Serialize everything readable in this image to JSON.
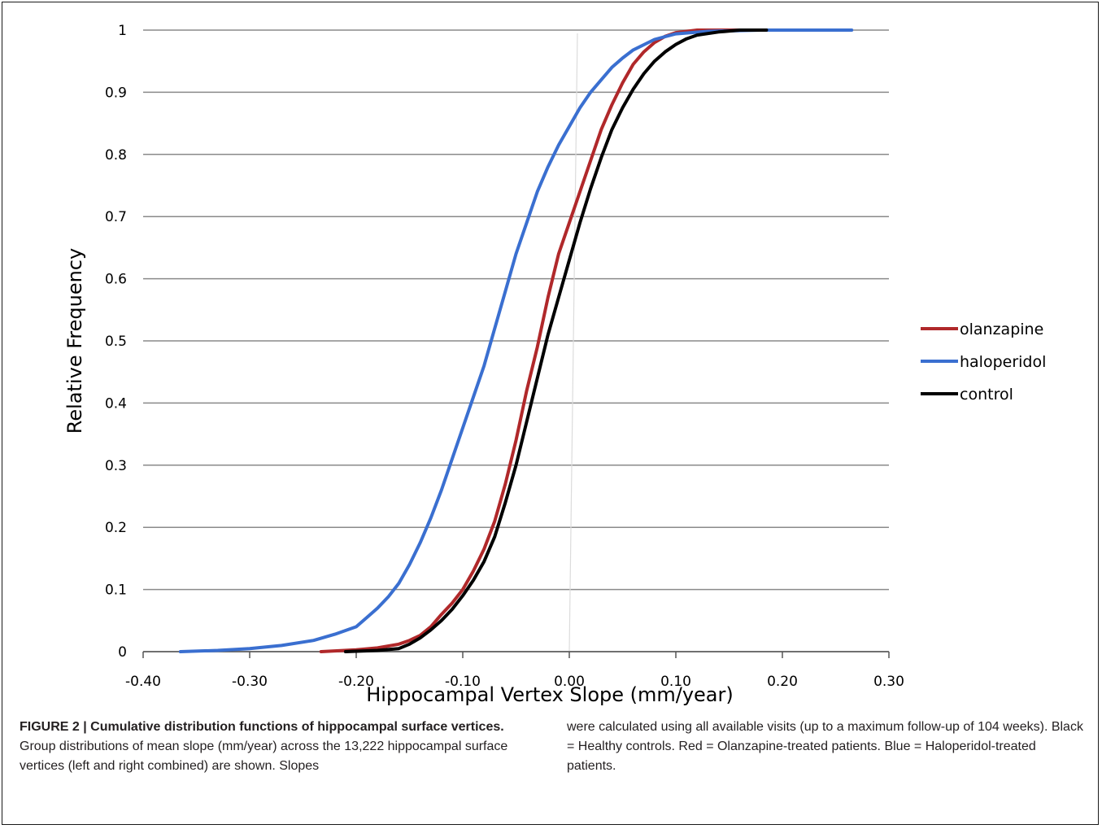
{
  "chart_data": {
    "type": "line",
    "title": "",
    "xlabel": "Hippocampal Vertex Slope (mm/year)",
    "ylabel": "Relative Frequency",
    "xlim": [
      -0.4,
      0.3
    ],
    "ylim": [
      0,
      1
    ],
    "x_ticks": [
      "-0.40",
      "-0.30",
      "-0.20",
      "-0.10",
      "0.00",
      "0.10",
      "0.20",
      "0.30"
    ],
    "y_ticks": [
      "0",
      "0.1",
      "0.2",
      "0.3",
      "0.4",
      "0.5",
      "0.6",
      "0.7",
      "0.8",
      "0.9",
      "1"
    ],
    "grid": "horizontal",
    "legend_position": "right",
    "series": [
      {
        "name": "olanzapine",
        "color": "#b0282a",
        "points": [
          [
            -0.233,
            0.0
          ],
          [
            -0.2,
            0.003
          ],
          [
            -0.18,
            0.006
          ],
          [
            -0.16,
            0.012
          ],
          [
            -0.15,
            0.018
          ],
          [
            -0.14,
            0.026
          ],
          [
            -0.13,
            0.04
          ],
          [
            -0.12,
            0.06
          ],
          [
            -0.11,
            0.078
          ],
          [
            -0.1,
            0.1
          ],
          [
            -0.09,
            0.13
          ],
          [
            -0.08,
            0.165
          ],
          [
            -0.07,
            0.21
          ],
          [
            -0.06,
            0.27
          ],
          [
            -0.05,
            0.34
          ],
          [
            -0.04,
            0.42
          ],
          [
            -0.03,
            0.49
          ],
          [
            -0.02,
            0.57
          ],
          [
            -0.01,
            0.64
          ],
          [
            0.0,
            0.69
          ],
          [
            0.01,
            0.74
          ],
          [
            0.02,
            0.79
          ],
          [
            0.03,
            0.84
          ],
          [
            0.04,
            0.88
          ],
          [
            0.05,
            0.915
          ],
          [
            0.06,
            0.945
          ],
          [
            0.07,
            0.965
          ],
          [
            0.08,
            0.98
          ],
          [
            0.09,
            0.99
          ],
          [
            0.1,
            0.996
          ],
          [
            0.12,
            1.0
          ],
          [
            0.16,
            1.0
          ]
        ]
      },
      {
        "name": "haloperidol",
        "color": "#3a6fd0",
        "points": [
          [
            -0.365,
            0.0
          ],
          [
            -0.33,
            0.002
          ],
          [
            -0.3,
            0.005
          ],
          [
            -0.27,
            0.01
          ],
          [
            -0.24,
            0.018
          ],
          [
            -0.22,
            0.028
          ],
          [
            -0.2,
            0.04
          ],
          [
            -0.19,
            0.055
          ],
          [
            -0.18,
            0.07
          ],
          [
            -0.17,
            0.088
          ],
          [
            -0.16,
            0.11
          ],
          [
            -0.15,
            0.14
          ],
          [
            -0.14,
            0.175
          ],
          [
            -0.13,
            0.215
          ],
          [
            -0.12,
            0.26
          ],
          [
            -0.11,
            0.31
          ],
          [
            -0.1,
            0.36
          ],
          [
            -0.09,
            0.41
          ],
          [
            -0.08,
            0.46
          ],
          [
            -0.07,
            0.52
          ],
          [
            -0.06,
            0.58
          ],
          [
            -0.05,
            0.64
          ],
          [
            -0.04,
            0.69
          ],
          [
            -0.03,
            0.74
          ],
          [
            -0.02,
            0.78
          ],
          [
            -0.01,
            0.815
          ],
          [
            0.0,
            0.845
          ],
          [
            0.01,
            0.875
          ],
          [
            0.02,
            0.9
          ],
          [
            0.03,
            0.92
          ],
          [
            0.04,
            0.94
          ],
          [
            0.05,
            0.955
          ],
          [
            0.06,
            0.968
          ],
          [
            0.08,
            0.985
          ],
          [
            0.1,
            0.994
          ],
          [
            0.13,
            0.998
          ],
          [
            0.18,
            1.0
          ],
          [
            0.265,
            1.0
          ]
        ]
      },
      {
        "name": "control",
        "color": "#000000",
        "points": [
          [
            -0.21,
            0.0
          ],
          [
            -0.18,
            0.002
          ],
          [
            -0.16,
            0.005
          ],
          [
            -0.15,
            0.012
          ],
          [
            -0.14,
            0.022
          ],
          [
            -0.13,
            0.035
          ],
          [
            -0.12,
            0.05
          ],
          [
            -0.11,
            0.068
          ],
          [
            -0.1,
            0.09
          ],
          [
            -0.09,
            0.115
          ],
          [
            -0.08,
            0.145
          ],
          [
            -0.07,
            0.185
          ],
          [
            -0.06,
            0.24
          ],
          [
            -0.05,
            0.3
          ],
          [
            -0.04,
            0.37
          ],
          [
            -0.03,
            0.44
          ],
          [
            -0.02,
            0.51
          ],
          [
            -0.01,
            0.57
          ],
          [
            0.0,
            0.63
          ],
          [
            0.01,
            0.69
          ],
          [
            0.02,
            0.745
          ],
          [
            0.03,
            0.795
          ],
          [
            0.04,
            0.84
          ],
          [
            0.05,
            0.875
          ],
          [
            0.06,
            0.905
          ],
          [
            0.07,
            0.93
          ],
          [
            0.08,
            0.95
          ],
          [
            0.09,
            0.965
          ],
          [
            0.1,
            0.977
          ],
          [
            0.11,
            0.986
          ],
          [
            0.12,
            0.992
          ],
          [
            0.14,
            0.997
          ],
          [
            0.16,
            1.0
          ],
          [
            0.185,
            1.0
          ]
        ]
      }
    ]
  },
  "caption": {
    "label": "FIGURE 2 | Cumulative distribution functions of hippocampal surface vertices.",
    "text_left": " Group distributions of mean slope (mm/year) across the 13,222 hippocampal surface vertices (left and right combined) are shown. Slopes",
    "text_right": "were calculated using all available visits (up to a maximum follow-up of 104 weeks). Black = Healthy controls. Red = Olanzapine-treated patients. Blue = Haloperidol-treated patients."
  }
}
